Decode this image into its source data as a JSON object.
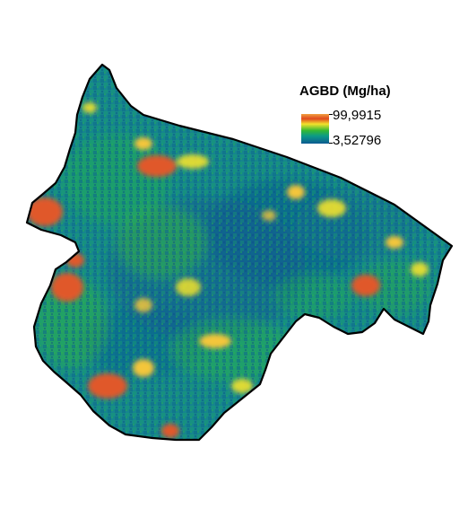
{
  "legend": {
    "title": "AGBD (Mg/ha)",
    "max_label": "99,9915",
    "min_label": "3,52796",
    "ramp_colors": [
      "#f0a040",
      "#e04a1e",
      "#f2e22c",
      "#34b833",
      "#0c9b86",
      "#0d5a92"
    ]
  },
  "map": {
    "outline_color": "#000000",
    "background_color": "#ffffff",
    "hotspot_colors": [
      "#e0582a",
      "#f4c63a",
      "#f2e22c"
    ]
  }
}
